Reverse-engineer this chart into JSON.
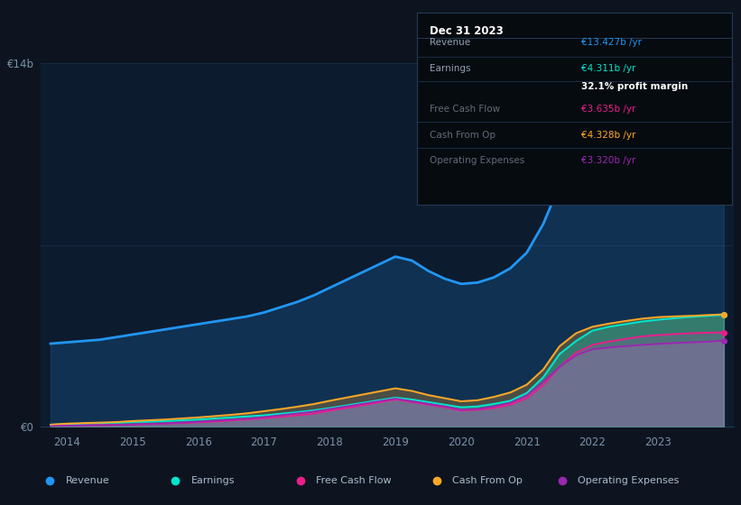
{
  "bg_color": "#0d1420",
  "plot_bg_color": "#0d1b2e",
  "grid_color": "#1a3050",
  "years": [
    2013.75,
    2014.0,
    2014.25,
    2014.5,
    2014.75,
    2015.0,
    2015.25,
    2015.5,
    2015.75,
    2016.0,
    2016.25,
    2016.5,
    2016.75,
    2017.0,
    2017.25,
    2017.5,
    2017.75,
    2018.0,
    2018.25,
    2018.5,
    2018.75,
    2019.0,
    2019.25,
    2019.5,
    2019.75,
    2020.0,
    2020.25,
    2020.5,
    2020.75,
    2021.0,
    2021.25,
    2021.5,
    2021.75,
    2022.0,
    2022.25,
    2022.5,
    2022.75,
    2023.0,
    2023.25,
    2023.5,
    2023.75,
    2024.0
  ],
  "revenue": [
    3.2,
    3.25,
    3.3,
    3.35,
    3.45,
    3.55,
    3.65,
    3.75,
    3.85,
    3.95,
    4.05,
    4.15,
    4.25,
    4.4,
    4.6,
    4.8,
    5.05,
    5.35,
    5.65,
    5.95,
    6.25,
    6.55,
    6.4,
    6.0,
    5.7,
    5.5,
    5.55,
    5.75,
    6.1,
    6.7,
    7.8,
    9.3,
    10.4,
    11.3,
    11.7,
    12.0,
    12.3,
    12.6,
    12.85,
    13.05,
    13.2,
    13.427
  ],
  "earnings": [
    0.08,
    0.1,
    0.12,
    0.14,
    0.16,
    0.18,
    0.2,
    0.22,
    0.25,
    0.28,
    0.32,
    0.36,
    0.4,
    0.44,
    0.5,
    0.56,
    0.63,
    0.72,
    0.82,
    0.92,
    1.02,
    1.12,
    1.05,
    0.95,
    0.85,
    0.75,
    0.78,
    0.88,
    1.0,
    1.3,
    1.9,
    2.8,
    3.3,
    3.7,
    3.85,
    3.95,
    4.05,
    4.12,
    4.18,
    4.23,
    4.27,
    4.311
  ],
  "free_cash_flow": [
    0.02,
    0.04,
    0.05,
    0.06,
    0.07,
    0.08,
    0.1,
    0.12,
    0.14,
    0.17,
    0.2,
    0.24,
    0.28,
    0.33,
    0.38,
    0.44,
    0.5,
    0.62,
    0.72,
    0.83,
    0.94,
    1.05,
    0.95,
    0.85,
    0.75,
    0.62,
    0.65,
    0.72,
    0.85,
    1.1,
    1.6,
    2.3,
    2.85,
    3.15,
    3.28,
    3.38,
    3.48,
    3.53,
    3.57,
    3.6,
    3.62,
    3.635
  ],
  "cash_from_op": [
    0.08,
    0.12,
    0.14,
    0.16,
    0.18,
    0.22,
    0.25,
    0.28,
    0.32,
    0.36,
    0.41,
    0.46,
    0.52,
    0.6,
    0.68,
    0.77,
    0.87,
    1.0,
    1.12,
    1.24,
    1.36,
    1.48,
    1.38,
    1.22,
    1.1,
    0.98,
    1.02,
    1.15,
    1.32,
    1.62,
    2.2,
    3.1,
    3.6,
    3.85,
    3.97,
    4.07,
    4.16,
    4.22,
    4.25,
    4.27,
    4.3,
    4.328
  ],
  "op_expenses": [
    0.02,
    0.04,
    0.05,
    0.06,
    0.07,
    0.09,
    0.11,
    0.13,
    0.16,
    0.19,
    0.23,
    0.27,
    0.31,
    0.37,
    0.44,
    0.51,
    0.58,
    0.68,
    0.78,
    0.88,
    0.98,
    1.08,
    0.98,
    0.88,
    0.78,
    0.65,
    0.68,
    0.78,
    0.92,
    1.2,
    1.72,
    2.3,
    2.75,
    2.98,
    3.05,
    3.1,
    3.15,
    3.19,
    3.22,
    3.25,
    3.27,
    3.32
  ],
  "revenue_color": "#2196f3",
  "earnings_color": "#00e5cc",
  "fcf_color": "#e91e8c",
  "cashop_color": "#ffa726",
  "opex_color": "#9c27b0",
  "ylim": [
    0,
    14
  ],
  "xlim_start": 2013.6,
  "xlim_end": 2024.15,
  "xlabel_years": [
    2014,
    2015,
    2016,
    2017,
    2018,
    2019,
    2020,
    2021,
    2022,
    2023
  ],
  "info_box_title": "Dec 31 2023",
  "info_rows": [
    {
      "label": "Revenue",
      "value": "€13.427b /yr",
      "vcolor": "#2196f3",
      "dim": false,
      "bold_val": false
    },
    {
      "label": "Earnings",
      "value": "€4.311b /yr",
      "vcolor": "#00e5cc",
      "dim": false,
      "bold_val": false
    },
    {
      "label": "",
      "value": "32.1% profit margin",
      "vcolor": "#ffffff",
      "dim": false,
      "bold_val": true
    },
    {
      "label": "Free Cash Flow",
      "value": "€3.635b /yr",
      "vcolor": "#e91e8c",
      "dim": true,
      "bold_val": false
    },
    {
      "label": "Cash From Op",
      "value": "€4.328b /yr",
      "vcolor": "#ffa726",
      "dim": true,
      "bold_val": false
    },
    {
      "label": "Operating Expenses",
      "value": "€3.320b /yr",
      "vcolor": "#9c27b0",
      "dim": true,
      "bold_val": false
    }
  ],
  "legend_items": [
    {
      "label": "Revenue",
      "color": "#2196f3"
    },
    {
      "label": "Earnings",
      "color": "#00e5cc"
    },
    {
      "label": "Free Cash Flow",
      "color": "#e91e8c"
    },
    {
      "label": "Cash From Op",
      "color": "#ffa726"
    },
    {
      "label": "Operating Expenses",
      "color": "#9c27b0"
    }
  ]
}
